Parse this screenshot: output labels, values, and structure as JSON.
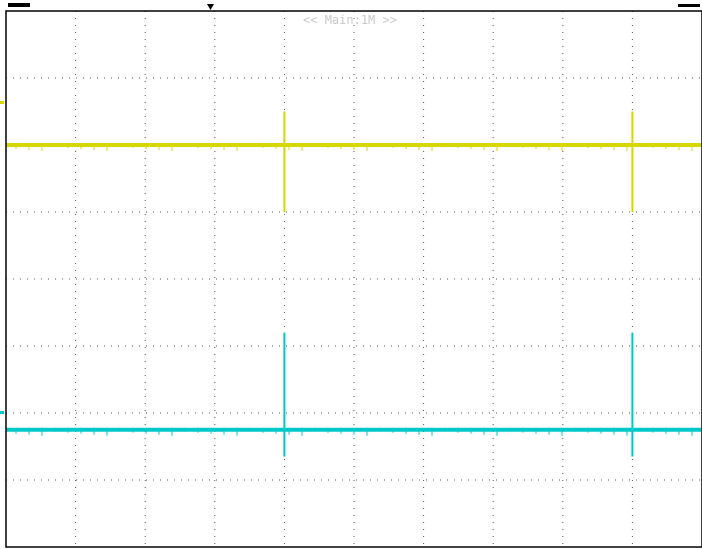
{
  "header": {
    "timebase_label": "<< Main:1M >>"
  },
  "colors": {
    "background": "#ffffff",
    "frame": "#000000",
    "grid": "#555555",
    "ch1": "#d6d600",
    "ch2": "#00c8c8",
    "label": "#c8c8c8"
  },
  "chart_data": {
    "type": "line",
    "title": "",
    "xlabel": "",
    "ylabel": "",
    "x_divisions": 10,
    "y_divisions": 8,
    "xlim": [
      0,
      10
    ],
    "ylim": [
      0,
      8
    ],
    "grid": true,
    "series": [
      {
        "channel": "ch1",
        "color": "#d6d600",
        "baseline_div": 6.0,
        "spikes": [
          {
            "x_div": 4.0,
            "up_div": 0.5,
            "down_div": 1.0
          },
          {
            "x_div": 9.0,
            "up_div": 0.5,
            "down_div": 1.0
          }
        ]
      },
      {
        "channel": "ch2",
        "color": "#00c8c8",
        "baseline_div": 1.75,
        "spikes": [
          {
            "x_div": 4.0,
            "up_div": 1.45,
            "down_div": 0.4
          },
          {
            "x_div": 9.0,
            "up_div": 1.45,
            "down_div": 0.4
          }
        ]
      }
    ]
  }
}
